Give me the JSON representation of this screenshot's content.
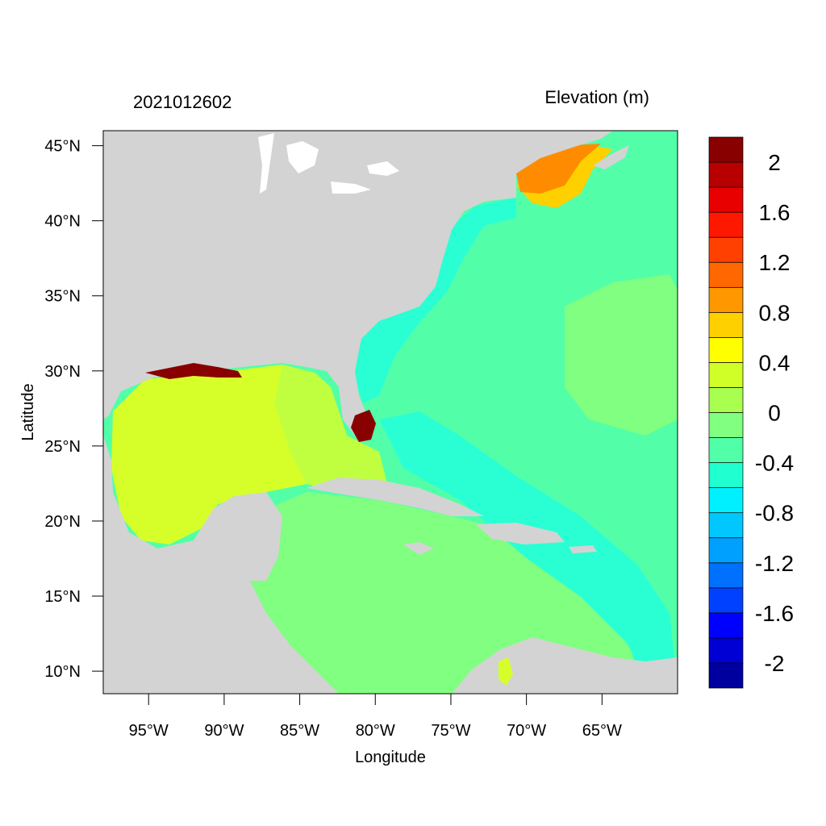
{
  "map": {
    "left_title": "2021012602",
    "right_title": "Elevation (m)",
    "xlabel": "Longitude",
    "ylabel": "Latitude",
    "lon_range": [
      -98,
      -60
    ],
    "lat_range": [
      8.5,
      46
    ],
    "x_ticks": [
      {
        "value": -95,
        "label": "95°W"
      },
      {
        "value": -90,
        "label": "90°W"
      },
      {
        "value": -85,
        "label": "85°W"
      },
      {
        "value": -80,
        "label": "80°W"
      },
      {
        "value": -75,
        "label": "75°W"
      },
      {
        "value": -70,
        "label": "70°W"
      },
      {
        "value": -65,
        "label": "65°W"
      }
    ],
    "y_ticks": [
      {
        "value": 45,
        "label": "45°N"
      },
      {
        "value": 40,
        "label": "40°N"
      },
      {
        "value": 35,
        "label": "35°N"
      },
      {
        "value": 30,
        "label": "30°N"
      },
      {
        "value": 25,
        "label": "25°N"
      },
      {
        "value": 20,
        "label": "20°N"
      },
      {
        "value": 15,
        "label": "15°N"
      },
      {
        "value": 10,
        "label": "10°N"
      }
    ],
    "land_color": "#d3d3d3",
    "lakes_color": "#ffffff"
  },
  "colorbar": {
    "colors": [
      "#00009e",
      "#0000d4",
      "#0000ff",
      "#0040ff",
      "#0070ff",
      "#00a0ff",
      "#00c8ff",
      "#00f0ff",
      "#20ffd0",
      "#50ffa8",
      "#80ff80",
      "#a8ff50",
      "#d0ff28",
      "#ffff00",
      "#ffd000",
      "#ff9800",
      "#ff6800",
      "#ff4000",
      "#ff1800",
      "#e80000",
      "#b80000",
      "#880000"
    ],
    "labels": [
      {
        "value": 2,
        "label": "2"
      },
      {
        "value": 1.6,
        "label": "1.6"
      },
      {
        "value": 1.2,
        "label": "1.2"
      },
      {
        "value": 0.8,
        "label": "0.8"
      },
      {
        "value": 0.4,
        "label": "0.4"
      },
      {
        "value": 0,
        "label": "0"
      },
      {
        "value": -0.4,
        "label": "-0.4"
      },
      {
        "value": -0.8,
        "label": "-0.8"
      },
      {
        "value": -1.2,
        "label": "-1.2"
      },
      {
        "value": -1.6,
        "label": "-1.6"
      },
      {
        "value": -2,
        "label": "-2"
      }
    ]
  },
  "fields": {
    "gulf": "#d6ff2a",
    "gulf_east": "#c0ff40",
    "caribbean": "#80ff80",
    "atlantic": "#52ffa8",
    "shelf": "#2affd4",
    "maine_orange": "#ff8c00",
    "maine_yellow": "#ffd000",
    "surge": "#880000"
  }
}
